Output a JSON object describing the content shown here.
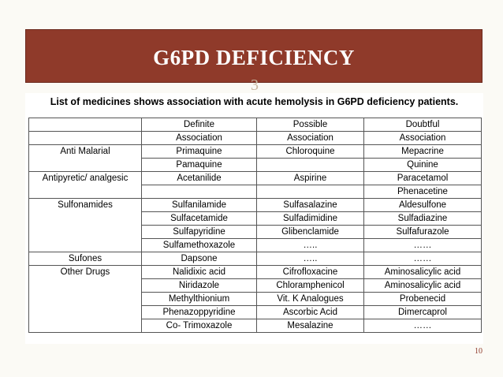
{
  "slide": {
    "title": "G6PD DEFICIENCY",
    "mark": "3",
    "page_number": "10"
  },
  "table": {
    "caption": "List of medicines shows association with acute hemolysis in G6PD deficiency patients.",
    "header_row1": [
      "",
      "Definite",
      "Possible",
      "Doubtful"
    ],
    "header_row2": [
      "",
      "Association",
      "Association",
      "Association"
    ],
    "groups": [
      {
        "category": "Anti Malarial",
        "rows": [
          [
            "Primaquine",
            "Chloroquine",
            "Mepacrine"
          ],
          [
            "Pamaquine",
            "",
            "Quinine"
          ]
        ]
      },
      {
        "category": "Antipyretic/ analgesic",
        "rows": [
          [
            "Acetanilide",
            "Aspirine",
            "Paracetamol"
          ],
          [
            "",
            "",
            "Phenacetine"
          ]
        ]
      },
      {
        "category": "Sulfonamides",
        "rows": [
          [
            "Sulfanilamide",
            "Sulfasalazine",
            "Aldesulfone"
          ],
          [
            "Sulfacetamide",
            "Sulfadimidine",
            "Sulfadiazine"
          ],
          [
            "Sulfapyridine",
            "Glibenclamide",
            "Sulfafurazole"
          ],
          [
            "Sulfamethoxazole",
            "…..",
            "……"
          ]
        ]
      },
      {
        "category": "Sufones",
        "rows": [
          [
            "Dapsone",
            "…..",
            "……"
          ]
        ]
      },
      {
        "category": "Other Drugs",
        "rows": [
          [
            "Nalidixic acid",
            "Cifrofloxacine",
            "Aminosalicylic acid"
          ],
          [
            "Niridazole",
            "Chloramphenicol",
            "Aminosalicylic acid"
          ],
          [
            "Methylthionium",
            "Vit. K Analogues",
            "Probenecid"
          ],
          [
            "Phenazoppyridine",
            "Ascorbic Acid",
            "Dimercaprol"
          ],
          [
            "Co- Trimoxazole",
            "Mesalazine",
            "……"
          ]
        ]
      }
    ]
  }
}
